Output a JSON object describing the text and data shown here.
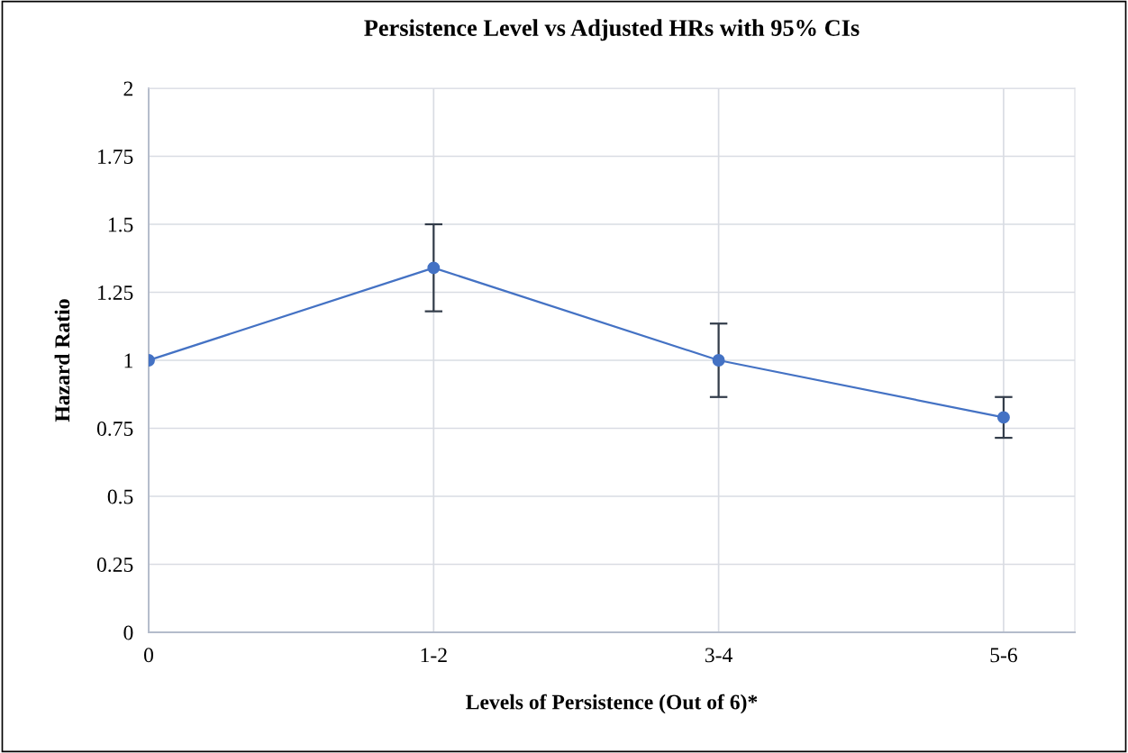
{
  "chart_data": {
    "type": "line",
    "title": "Persistence Level vs Adjusted HRs with 95% CIs",
    "xlabel": "Levels of Persistence (Out of 6)*",
    "ylabel": "Hazard Ratio",
    "categories": [
      "0",
      "1-2",
      "3-4",
      "5-6"
    ],
    "series": [
      {
        "color": "#4472c4",
        "values": [
          1.0,
          1.34,
          1.0,
          0.79
        ],
        "errors": [
          null,
          [
            1.18,
            1.5
          ],
          [
            0.865,
            1.135
          ],
          [
            0.715,
            0.865
          ]
        ]
      }
    ],
    "ylim": [
      0,
      2
    ],
    "yticks": [
      0,
      0.25,
      0.5,
      0.75,
      1,
      1.25,
      1.5,
      1.75,
      2
    ],
    "grid": true,
    "marker": "circle",
    "line_style": "solid"
  }
}
